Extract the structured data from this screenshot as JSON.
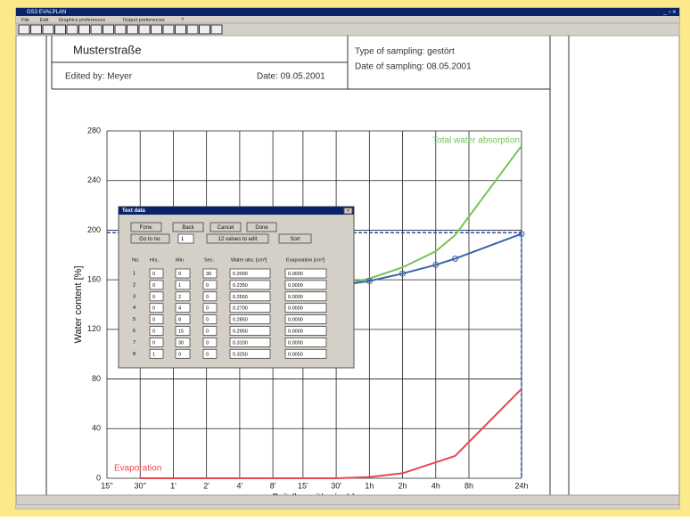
{
  "window": {
    "title": "GS3 EVALPLAN",
    "menu": [
      "File",
      "Edit",
      "Graphics preferences",
      "Output preferences",
      "?"
    ]
  },
  "document": {
    "street": "Musterstraße",
    "edited_by": "Edited by: Meyer",
    "date": "Date: 09.05.2001",
    "type_of_sampling": "Type of sampling: gestört",
    "date_of_sampling": "Date of sampling: 08.05.2001"
  },
  "chart_data": {
    "type": "line",
    "x_label": "Zeit (logarithmisch)",
    "y_label": "Water content [%]",
    "xscale": "log",
    "xlim": [
      15,
      86400
    ],
    "ylim": [
      0,
      280
    ],
    "grid": true,
    "xticks": [
      {
        "value": 15,
        "label": "15''"
      },
      {
        "value": 30,
        "label": "30''"
      },
      {
        "value": 60,
        "label": "1'"
      },
      {
        "value": 120,
        "label": "2'"
      },
      {
        "value": 240,
        "label": "4'"
      },
      {
        "value": 480,
        "label": "8'"
      },
      {
        "value": 900,
        "label": "15'"
      },
      {
        "value": 1800,
        "label": "30'"
      },
      {
        "value": 3600,
        "label": "1h"
      },
      {
        "value": 7200,
        "label": "2h"
      },
      {
        "value": 14400,
        "label": "4h"
      },
      {
        "value": 28800,
        "label": "8h"
      },
      {
        "value": 86400,
        "label": "24h"
      }
    ],
    "yticks": [
      0,
      40,
      80,
      120,
      160,
      200,
      240,
      280
    ],
    "series": [
      {
        "name": "Total water absorption",
        "color": "#78c25a",
        "x": [
          1800,
          3600,
          7200,
          14400,
          21600,
          86400
        ],
        "values": [
          155,
          161,
          170,
          183,
          196,
          268
        ]
      },
      {
        "color": "#3a64a8",
        "markers": true,
        "x": [
          1800,
          3600,
          7200,
          14400,
          21600,
          86400
        ],
        "values": [
          155,
          159,
          165,
          172,
          177,
          197
        ]
      },
      {
        "name": "Evaporation",
        "color": "#e8474f",
        "x": [
          30,
          1800,
          3600,
          7200,
          21600,
          86400
        ],
        "values": [
          0,
          0,
          1,
          4,
          18,
          72
        ]
      }
    ],
    "marker": {
      "x": 86400,
      "y": 198,
      "color": "#2a4fb0"
    }
  },
  "dialog": {
    "title": "Text data",
    "buttons": [
      "Forw.",
      "Back",
      "Cancel",
      "Done"
    ],
    "goto": "Go to no.",
    "goto_value": "1",
    "count": "12 values to edit",
    "sort": "Sort",
    "headers": [
      "No.",
      "Hrs.",
      "Min.",
      "Sec.",
      "Water abs. [cm³]",
      "Evaporation [cm³]"
    ],
    "rows": [
      [
        "1",
        "0",
        "0",
        "30",
        "0.2000",
        "0.0000"
      ],
      [
        "2",
        "0",
        "1",
        "0",
        "0.2350",
        "0.0000"
      ],
      [
        "3",
        "0",
        "2",
        "0",
        "0.2550",
        "0.0000"
      ],
      [
        "4",
        "0",
        "4",
        "0",
        "0.2700",
        "0.0000"
      ],
      [
        "5",
        "0",
        "8",
        "0",
        "0.2850",
        "0.0000"
      ],
      [
        "6",
        "0",
        "15",
        "0",
        "0.2950",
        "0.0000"
      ],
      [
        "7",
        "0",
        "30",
        "0",
        "0.3100",
        "0.0000"
      ],
      [
        "8",
        "1",
        "0",
        "0",
        "0.3250",
        "0.0050"
      ]
    ]
  }
}
